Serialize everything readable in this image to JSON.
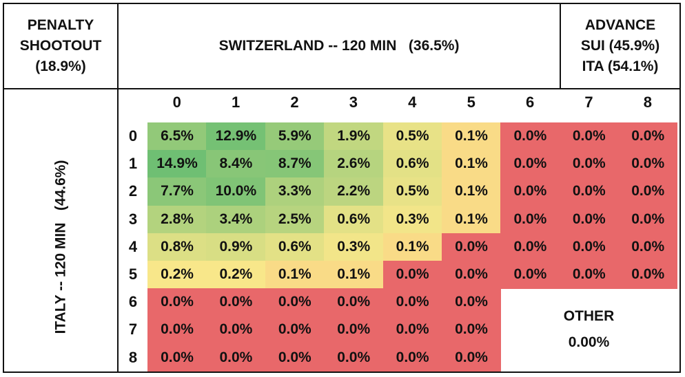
{
  "header": {
    "shootout_lines": [
      "PENALTY",
      "SHOOTOUT",
      "(18.9%)"
    ],
    "switzerland_title": "SWITZERLAND -- 120 MIN   (36.5%)",
    "advance_lines": [
      "ADVANCE",
      "SUI (45.9%)",
      "ITA (54.1%)"
    ]
  },
  "italy_label": "ITALY -- 120 MIN   (44.6%)",
  "other": {
    "label": "OTHER",
    "value": "0.00%"
  },
  "chart_data": {
    "type": "heatmap",
    "title": "",
    "x_title": "SWITZERLAND -- 120 MIN   (36.5%)",
    "y_title": "ITALY -- 120 MIN   (44.6%)",
    "x": [
      "0",
      "1",
      "2",
      "3",
      "4",
      "5",
      "6",
      "7",
      "8"
    ],
    "y": [
      "0",
      "1",
      "2",
      "3",
      "4",
      "5",
      "6",
      "7",
      "8"
    ],
    "values": [
      [
        "6.5%",
        "12.9%",
        "5.9%",
        "1.9%",
        "0.5%",
        "0.1%",
        "0.0%",
        "0.0%",
        "0.0%"
      ],
      [
        "14.9%",
        "8.4%",
        "8.7%",
        "2.6%",
        "0.6%",
        "0.1%",
        "0.0%",
        "0.0%",
        "0.0%"
      ],
      [
        "7.7%",
        "10.0%",
        "3.3%",
        "2.2%",
        "0.5%",
        "0.1%",
        "0.0%",
        "0.0%",
        "0.0%"
      ],
      [
        "2.8%",
        "3.4%",
        "2.5%",
        "0.6%",
        "0.3%",
        "0.1%",
        "0.0%",
        "0.0%",
        "0.0%"
      ],
      [
        "0.8%",
        "0.9%",
        "0.6%",
        "0.3%",
        "0.1%",
        "0.0%",
        "0.0%",
        "0.0%",
        "0.0%"
      ],
      [
        "0.2%",
        "0.2%",
        "0.1%",
        "0.1%",
        "0.0%",
        "0.0%",
        "0.0%",
        "0.0%",
        "0.0%"
      ],
      [
        "0.0%",
        "0.0%",
        "0.0%",
        "0.0%",
        "0.0%",
        "0.0%",
        null,
        null,
        null
      ],
      [
        "0.0%",
        "0.0%",
        "0.0%",
        "0.0%",
        "0.0%",
        "0.0%",
        null,
        null,
        null
      ],
      [
        "0.0%",
        "0.0%",
        "0.0%",
        "0.0%",
        "0.0%",
        "0.0%",
        null,
        null,
        null
      ]
    ],
    "color_scale": {
      "low": "#e8686a",
      "mid": "#fbe88a",
      "high": "#6fbf73"
    }
  }
}
